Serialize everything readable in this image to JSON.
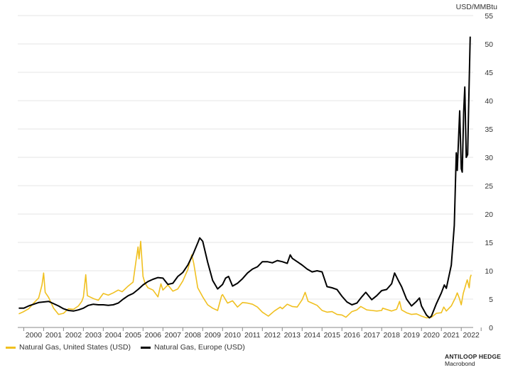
{
  "chart_data": {
    "type": "line",
    "title": "",
    "xlabel": "",
    "ylabel": "USD/MMBtu",
    "ylim": [
      0,
      55
    ],
    "yticks": [
      0,
      5,
      10,
      15,
      20,
      25,
      30,
      35,
      40,
      45,
      50,
      55
    ],
    "xlim": [
      1999.7,
      2022.6
    ],
    "xticks": [
      "2000",
      "2001",
      "2002",
      "2003",
      "2004",
      "2005",
      "2006",
      "2007",
      "2008",
      "2009",
      "2010",
      "2011",
      "2012",
      "2013",
      "2014",
      "2015",
      "2016",
      "2017",
      "2018",
      "2019",
      "2020",
      "2021",
      "2022"
    ],
    "grid": true,
    "legend_position": "bottom-left",
    "series": [
      {
        "name": "Natural Gas, United States (USD)",
        "color": "#F0C020",
        "points": [
          [
            1999.75,
            2.4
          ],
          [
            2000.0,
            2.8
          ],
          [
            2000.25,
            3.3
          ],
          [
            2000.5,
            4.3
          ],
          [
            2000.75,
            5.2
          ],
          [
            2000.92,
            7.5
          ],
          [
            2001.0,
            9.6
          ],
          [
            2001.08,
            6.2
          ],
          [
            2001.25,
            5.3
          ],
          [
            2001.5,
            3.4
          ],
          [
            2001.75,
            2.3
          ],
          [
            2002.0,
            2.5
          ],
          [
            2002.25,
            3.3
          ],
          [
            2002.5,
            3.2
          ],
          [
            2002.75,
            3.8
          ],
          [
            2002.92,
            4.6
          ],
          [
            2003.0,
            5.4
          ],
          [
            2003.12,
            9.3
          ],
          [
            2003.2,
            5.6
          ],
          [
            2003.5,
            5.1
          ],
          [
            2003.75,
            4.8
          ],
          [
            2004.0,
            6.0
          ],
          [
            2004.25,
            5.7
          ],
          [
            2004.5,
            6.1
          ],
          [
            2004.75,
            6.6
          ],
          [
            2004.95,
            6.3
          ],
          [
            2005.25,
            7.3
          ],
          [
            2005.5,
            8.0
          ],
          [
            2005.65,
            11.8
          ],
          [
            2005.75,
            14.2
          ],
          [
            2005.8,
            12.1
          ],
          [
            2005.88,
            15.2
          ],
          [
            2006.0,
            9.0
          ],
          [
            2006.1,
            7.8
          ],
          [
            2006.25,
            7.0
          ],
          [
            2006.5,
            6.6
          ],
          [
            2006.75,
            5.4
          ],
          [
            2006.9,
            7.7
          ],
          [
            2007.0,
            6.6
          ],
          [
            2007.25,
            7.5
          ],
          [
            2007.5,
            6.4
          ],
          [
            2007.75,
            6.8
          ],
          [
            2008.0,
            8.2
          ],
          [
            2008.25,
            10.2
          ],
          [
            2008.45,
            12.8
          ],
          [
            2008.55,
            11.3
          ],
          [
            2008.75,
            7.0
          ],
          [
            2009.0,
            5.4
          ],
          [
            2009.25,
            4.0
          ],
          [
            2009.5,
            3.4
          ],
          [
            2009.75,
            3.0
          ],
          [
            2009.95,
            5.6
          ],
          [
            2010.0,
            5.8
          ],
          [
            2010.25,
            4.3
          ],
          [
            2010.5,
            4.7
          ],
          [
            2010.75,
            3.6
          ],
          [
            2011.0,
            4.4
          ],
          [
            2011.25,
            4.3
          ],
          [
            2011.5,
            4.1
          ],
          [
            2011.75,
            3.6
          ],
          [
            2012.0,
            2.7
          ],
          [
            2012.3,
            2.0
          ],
          [
            2012.6,
            2.9
          ],
          [
            2012.9,
            3.6
          ],
          [
            2013.0,
            3.3
          ],
          [
            2013.25,
            4.1
          ],
          [
            2013.5,
            3.7
          ],
          [
            2013.75,
            3.6
          ],
          [
            2014.0,
            4.9
          ],
          [
            2014.15,
            6.2
          ],
          [
            2014.3,
            4.6
          ],
          [
            2014.5,
            4.3
          ],
          [
            2014.75,
            3.9
          ],
          [
            2015.0,
            3.0
          ],
          [
            2015.25,
            2.7
          ],
          [
            2015.5,
            2.8
          ],
          [
            2015.75,
            2.3
          ],
          [
            2016.0,
            2.2
          ],
          [
            2016.2,
            1.8
          ],
          [
            2016.5,
            2.8
          ],
          [
            2016.75,
            3.1
          ],
          [
            2016.95,
            3.7
          ],
          [
            2017.25,
            3.1
          ],
          [
            2017.5,
            3.0
          ],
          [
            2017.75,
            2.9
          ],
          [
            2018.0,
            3.0
          ],
          [
            2018.05,
            3.4
          ],
          [
            2018.5,
            2.9
          ],
          [
            2018.75,
            3.2
          ],
          [
            2018.9,
            4.6
          ],
          [
            2019.0,
            3.1
          ],
          [
            2019.25,
            2.6
          ],
          [
            2019.5,
            2.3
          ],
          [
            2019.75,
            2.4
          ],
          [
            2020.0,
            2.0
          ],
          [
            2020.25,
            1.7
          ],
          [
            2020.5,
            1.8
          ],
          [
            2020.75,
            2.5
          ],
          [
            2021.0,
            2.6
          ],
          [
            2021.12,
            3.6
          ],
          [
            2021.25,
            2.9
          ],
          [
            2021.5,
            3.8
          ],
          [
            2021.7,
            5.2
          ],
          [
            2021.8,
            6.1
          ],
          [
            2021.9,
            5.2
          ],
          [
            2022.0,
            4.0
          ],
          [
            2022.1,
            6.0
          ],
          [
            2022.2,
            7.2
          ],
          [
            2022.3,
            8.4
          ],
          [
            2022.4,
            7.0
          ],
          [
            2022.45,
            8.8
          ],
          [
            2022.5,
            9.3
          ]
        ]
      },
      {
        "name": "Natural Gas, Europe (USD)",
        "color": "#000000",
        "points": [
          [
            1999.75,
            3.4
          ],
          [
            2000.0,
            3.4
          ],
          [
            2000.25,
            3.8
          ],
          [
            2000.5,
            4.1
          ],
          [
            2000.75,
            4.4
          ],
          [
            2001.0,
            4.5
          ],
          [
            2001.25,
            4.6
          ],
          [
            2001.5,
            4.2
          ],
          [
            2001.75,
            3.8
          ],
          [
            2002.0,
            3.3
          ],
          [
            2002.25,
            3.0
          ],
          [
            2002.5,
            2.9
          ],
          [
            2002.75,
            3.1
          ],
          [
            2003.0,
            3.4
          ],
          [
            2003.25,
            3.9
          ],
          [
            2003.5,
            4.1
          ],
          [
            2003.75,
            4.0
          ],
          [
            2004.0,
            4.0
          ],
          [
            2004.25,
            3.9
          ],
          [
            2004.5,
            4.0
          ],
          [
            2004.75,
            4.3
          ],
          [
            2005.0,
            5.0
          ],
          [
            2005.25,
            5.6
          ],
          [
            2005.5,
            6.0
          ],
          [
            2005.75,
            6.7
          ],
          [
            2006.0,
            7.5
          ],
          [
            2006.25,
            8.1
          ],
          [
            2006.5,
            8.5
          ],
          [
            2006.75,
            8.8
          ],
          [
            2007.0,
            8.7
          ],
          [
            2007.25,
            7.6
          ],
          [
            2007.5,
            7.8
          ],
          [
            2007.75,
            9.0
          ],
          [
            2008.0,
            9.7
          ],
          [
            2008.25,
            11.0
          ],
          [
            2008.5,
            12.8
          ],
          [
            2008.75,
            14.9
          ],
          [
            2008.85,
            15.8
          ],
          [
            2009.0,
            15.2
          ],
          [
            2009.25,
            11.5
          ],
          [
            2009.5,
            8.3
          ],
          [
            2009.75,
            6.8
          ],
          [
            2010.0,
            7.6
          ],
          [
            2010.15,
            8.7
          ],
          [
            2010.3,
            9.0
          ],
          [
            2010.5,
            7.3
          ],
          [
            2010.75,
            7.8
          ],
          [
            2011.0,
            8.6
          ],
          [
            2011.25,
            9.6
          ],
          [
            2011.5,
            10.3
          ],
          [
            2011.75,
            10.7
          ],
          [
            2012.0,
            11.6
          ],
          [
            2012.25,
            11.6
          ],
          [
            2012.5,
            11.4
          ],
          [
            2012.75,
            11.8
          ],
          [
            2013.0,
            11.6
          ],
          [
            2013.25,
            11.3
          ],
          [
            2013.4,
            12.8
          ],
          [
            2013.5,
            12.2
          ],
          [
            2013.75,
            11.6
          ],
          [
            2014.0,
            11.0
          ],
          [
            2014.25,
            10.3
          ],
          [
            2014.5,
            9.8
          ],
          [
            2014.75,
            10.0
          ],
          [
            2015.0,
            9.8
          ],
          [
            2015.25,
            7.2
          ],
          [
            2015.5,
            7.0
          ],
          [
            2015.75,
            6.7
          ],
          [
            2016.0,
            5.5
          ],
          [
            2016.25,
            4.5
          ],
          [
            2016.5,
            4.0
          ],
          [
            2016.75,
            4.3
          ],
          [
            2017.0,
            5.4
          ],
          [
            2017.2,
            6.2
          ],
          [
            2017.5,
            4.9
          ],
          [
            2017.75,
            5.6
          ],
          [
            2018.0,
            6.5
          ],
          [
            2018.25,
            6.7
          ],
          [
            2018.5,
            7.7
          ],
          [
            2018.65,
            9.6
          ],
          [
            2018.85,
            8.2
          ],
          [
            2019.0,
            7.2
          ],
          [
            2019.25,
            5.0
          ],
          [
            2019.5,
            3.8
          ],
          [
            2019.75,
            4.6
          ],
          [
            2019.9,
            5.2
          ],
          [
            2020.0,
            3.8
          ],
          [
            2020.25,
            2.2
          ],
          [
            2020.4,
            1.7
          ],
          [
            2020.5,
            2.0
          ],
          [
            2020.75,
            4.2
          ],
          [
            2021.0,
            6.1
          ],
          [
            2021.15,
            7.5
          ],
          [
            2021.25,
            6.9
          ],
          [
            2021.5,
            11.0
          ],
          [
            2021.65,
            18.0
          ],
          [
            2021.75,
            30.8
          ],
          [
            2021.8,
            27.7
          ],
          [
            2021.92,
            38.2
          ],
          [
            2022.0,
            28.0
          ],
          [
            2022.05,
            27.4
          ],
          [
            2022.12,
            38.0
          ],
          [
            2022.18,
            42.4
          ],
          [
            2022.25,
            30.0
          ],
          [
            2022.32,
            30.5
          ],
          [
            2022.38,
            40.0
          ],
          [
            2022.45,
            51.3
          ]
        ]
      }
    ]
  },
  "legend": {
    "us_label": "Natural Gas, United States (USD)",
    "europe_label": "Natural Gas, Europe (USD)"
  },
  "source": {
    "brand": "ANTILOOP HEDGE",
    "provider": "Macrobond"
  }
}
